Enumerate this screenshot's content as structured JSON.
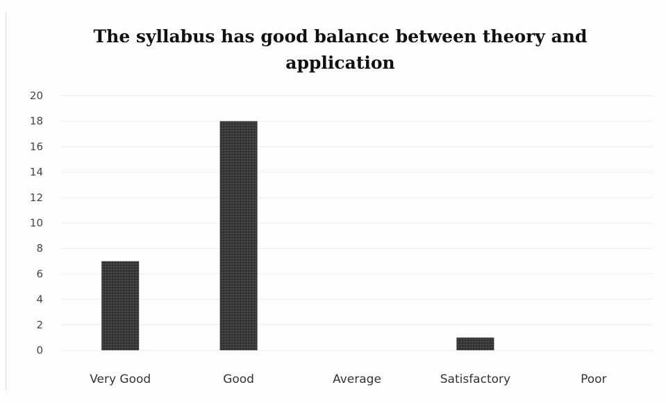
{
  "chart_data": {
    "type": "bar",
    "title": "The syllabus has good balance between theory and application",
    "xlabel": "",
    "ylabel": "",
    "categories": [
      "Very Good",
      "Good",
      "Average",
      "Satisfactory",
      "Poor"
    ],
    "values": [
      7,
      18,
      0,
      1,
      0
    ],
    "ylim": [
      0,
      20
    ],
    "yticks": [
      "0",
      "2",
      "4",
      "6",
      "8",
      "10",
      "12",
      "14",
      "16",
      "18",
      "20"
    ],
    "grid": true,
    "legend": "none",
    "colors": {
      "bar": "#3a3a3a",
      "grid": "#ececec",
      "text": "#333333"
    }
  }
}
